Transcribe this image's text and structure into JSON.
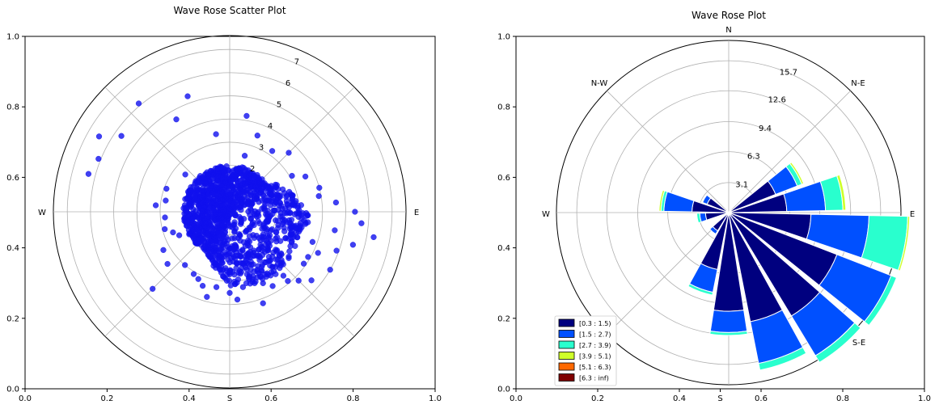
{
  "chart_data": [
    {
      "type": "scatter",
      "title": "Wave Rose Scatter Plot",
      "projection": "polar (direction vs. value)",
      "x_ticks": [
        "0.0",
        "0.2",
        "0.4",
        "0.6",
        "0.8",
        "1.0"
      ],
      "y_ticks": [
        "0.0",
        "0.2",
        "0.4",
        "0.6",
        "0.8",
        "1.0"
      ],
      "radial_ticks": [
        "2",
        "3",
        "4",
        "5",
        "6",
        "7"
      ],
      "direction_labels": {
        "E": "E",
        "W": "W",
        "S": "S"
      },
      "rmax": 7.6,
      "marker_color": "#1010ee",
      "points_description": "dense cloud centered at origin, mostly radius 0-3.5, extended toward E, SE and S",
      "points": [
        [
          300,
          6.5
        ],
        [
          285,
          6.3
        ],
        [
          292,
          6.1
        ],
        [
          320,
          6.1
        ],
        [
          305,
          5.7
        ],
        [
          340,
          5.3
        ],
        [
          330,
          4.6
        ],
        [
          10,
          4.2
        ],
        [
          20,
          3.5
        ],
        [
          35,
          3.2
        ],
        [
          45,
          3.6
        ],
        [
          60,
          3.1
        ],
        [
          75,
          4.0
        ],
        [
          85,
          4.6
        ],
        [
          90,
          5.4
        ],
        [
          95,
          5.7
        ],
        [
          100,
          6.3
        ],
        [
          105,
          5.5
        ],
        [
          110,
          4.9
        ],
        [
          115,
          4.2
        ],
        [
          120,
          5.0
        ],
        [
          125,
          3.9
        ],
        [
          130,
          4.6
        ],
        [
          135,
          4.2
        ],
        [
          140,
          3.6
        ],
        [
          150,
          3.7
        ],
        [
          160,
          4.2
        ],
        [
          170,
          3.3
        ],
        [
          180,
          3.5
        ],
        [
          190,
          3.3
        ],
        [
          200,
          3.4
        ],
        [
          210,
          3.1
        ],
        [
          225,
          4.7
        ],
        [
          240,
          3.3
        ],
        [
          250,
          2.6
        ],
        [
          255,
          2.9
        ],
        [
          265,
          2.8
        ],
        [
          275,
          3.2
        ],
        [
          280,
          2.8
        ],
        [
          290,
          2.9
        ],
        [
          310,
          2.5
        ],
        [
          350,
          3.4
        ],
        [
          15,
          2.5
        ],
        [
          65,
          3.6
        ],
        [
          80,
          3.9
        ],
        [
          100,
          4.6
        ],
        [
          110,
          3.8
        ],
        [
          120,
          3.9
        ],
        [
          140,
          3.9
        ],
        [
          155,
          3.4
        ],
        [
          175,
          3.8
        ],
        [
          195,
          3.8
        ],
        [
          205,
          3.2
        ],
        [
          220,
          3.0
        ],
        [
          230,
          3.5
        ],
        [
          245,
          2.4
        ]
      ],
      "cloud": {
        "count": 1400,
        "base_radius": 2.0,
        "lobes": [
          {
            "dir": 95,
            "extra": 1.5,
            "spread": 45
          },
          {
            "dir": 145,
            "extra": 1.5,
            "spread": 40
          },
          {
            "dir": 180,
            "extra": 1.0,
            "spread": 30
          }
        ]
      }
    },
    {
      "type": "bar",
      "subtype": "wind-rose (polar stacked bar)",
      "title": "Wave Rose Plot",
      "x_ticks": [
        "0.0",
        "0.2",
        "0.4",
        "S",
        "0.6",
        "0.8",
        "1.0"
      ],
      "y_ticks": [
        "0.0",
        "0.2",
        "0.4",
        "0.6",
        "0.8",
        "1.0"
      ],
      "radial_ticks": [
        "3.1",
        "6.3",
        "9.4",
        "12.6",
        "15.7"
      ],
      "radial_tick_values": [
        3.1,
        6.3,
        9.4,
        12.6,
        15.7
      ],
      "rmax": 17.8,
      "direction_labels": {
        "N": "N",
        "NE": "N-E",
        "E": "E",
        "SE": "S-E",
        "S": "S",
        "W": "W",
        "NW": "N-W"
      },
      "bin_width_deg": 20,
      "legend": {
        "position": "lower-left",
        "entries": [
          {
            "label": "[0.3 : 1.5)",
            "color": "#00007f"
          },
          {
            "label": "[1.5 : 2.7)",
            "color": "#0050ff"
          },
          {
            "label": "[2.7 : 3.9)",
            "color": "#29ffce"
          },
          {
            "label": "[3.9 : 5.1)",
            "color": "#ceff29"
          },
          {
            "label": "[5.1 : 6.3)",
            "color": "#ff6800"
          },
          {
            "label": "[6.3 : inf)",
            "color": "#7f0000"
          }
        ]
      },
      "series": [
        {
          "direction_deg": 30,
          "values": [
            0.3,
            0.1,
            0,
            0,
            0,
            0
          ]
        },
        {
          "direction_deg": 60,
          "values": [
            5.2,
            2.4,
            0.5,
            0.2,
            0,
            0
          ]
        },
        {
          "direction_deg": 80,
          "values": [
            6.0,
            4.0,
            1.8,
            0.3,
            0,
            0
          ]
        },
        {
          "direction_deg": 100,
          "values": [
            8.5,
            6.0,
            4.0,
            0.2,
            0,
            0
          ]
        },
        {
          "direction_deg": 120,
          "values": [
            12.0,
            6.0,
            0.6,
            0,
            0,
            0
          ]
        },
        {
          "direction_deg": 140,
          "values": [
            12.5,
            4.8,
            0.8,
            0,
            0,
            0
          ]
        },
        {
          "direction_deg": 160,
          "values": [
            11.5,
            4.4,
            0.7,
            0,
            0,
            0
          ]
        },
        {
          "direction_deg": 180,
          "values": [
            10.2,
            2.2,
            0.3,
            0,
            0,
            0
          ]
        },
        {
          "direction_deg": 200,
          "values": [
            6.0,
            2.4,
            0.3,
            0,
            0,
            0
          ]
        },
        {
          "direction_deg": 220,
          "values": [
            2.2,
            0.4,
            0,
            0,
            0,
            0
          ]
        },
        {
          "direction_deg": 260,
          "values": [
            2.4,
            0.6,
            0.3,
            0,
            0,
            0
          ]
        },
        {
          "direction_deg": 280,
          "values": [
            3.8,
            2.9,
            0.3,
            0.2,
            0,
            0
          ]
        },
        {
          "direction_deg": 300,
          "values": [
            2.4,
            0.5,
            0,
            0,
            0,
            0
          ]
        },
        {
          "direction_deg": 320,
          "values": [
            0.2,
            0.1,
            0,
            0,
            0,
            0
          ]
        }
      ]
    }
  ]
}
